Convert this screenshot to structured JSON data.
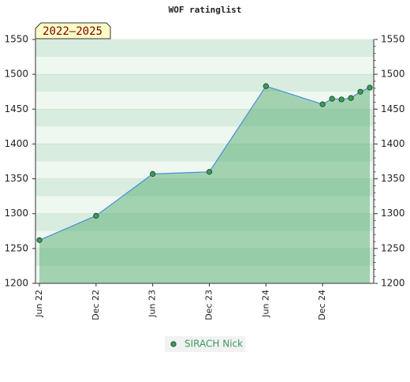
{
  "chart_data": {
    "type": "line",
    "title": "WOF ratinglist",
    "annotation": "2022–2025",
    "x": [
      "2022-06",
      "2022-12",
      "2023-06",
      "2023-12",
      "2024-06",
      "2024-12",
      "2025-01",
      "2025-02",
      "2025-03",
      "2025-04",
      "2025-05"
    ],
    "series": [
      {
        "name": "SIRACH Nick",
        "color": "#4a90d9",
        "marker_color": "#3c9a5c",
        "values": [
          1262,
          1297,
          1357,
          1360,
          1483,
          1457,
          1465,
          1464,
          1466,
          1475,
          1481
        ]
      }
    ],
    "xticks": [
      {
        "value": "2022-06",
        "label": "Jun 22"
      },
      {
        "value": "2022-12",
        "label": "Dec 22"
      },
      {
        "value": "2023-06",
        "label": "Jun 23"
      },
      {
        "value": "2023-12",
        "label": "Dec 23"
      },
      {
        "value": "2024-06",
        "label": "Jun 24"
      },
      {
        "value": "2024-12",
        "label": "Dec 24"
      }
    ],
    "ylim": [
      1200,
      1550
    ],
    "yticks": [
      1200,
      1250,
      1300,
      1350,
      1400,
      1450,
      1500,
      1550
    ],
    "grid": true
  }
}
